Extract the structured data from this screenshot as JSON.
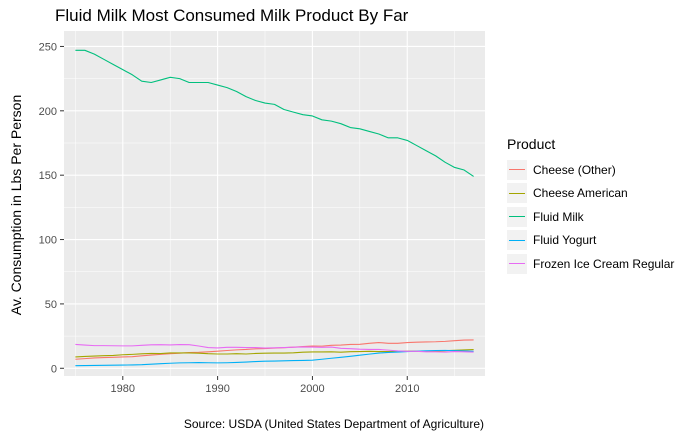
{
  "chart_data": {
    "type": "line",
    "title": "Fluid Milk Most Consumed Milk Product By Far",
    "ylabel": "Av. Consumption in Lbs Per Person",
    "xlabel": "",
    "caption": "Source: USDA (United States Department of Agriculture)",
    "xlim": [
      1973.8,
      2018.2
    ],
    "ylim": [
      -6,
      262
    ],
    "x_ticks": [
      1980,
      1990,
      2000,
      2010
    ],
    "y_ticks": [
      0,
      50,
      100,
      150,
      200,
      250
    ],
    "grid": true,
    "legend": {
      "title": "Product",
      "position": "right"
    },
    "series": [
      {
        "name": "Cheese (Other)",
        "color": "#F8766D",
        "x": [
          1975,
          1976,
          1977,
          1978,
          1979,
          1980,
          1981,
          1982,
          1983,
          1984,
          1985,
          1986,
          1987,
          1988,
          1989,
          1990,
          1991,
          1992,
          1993,
          1994,
          1995,
          1996,
          1997,
          1998,
          1999,
          2000,
          2001,
          2002,
          2003,
          2004,
          2005,
          2006,
          2007,
          2008,
          2009,
          2010,
          2011,
          2012,
          2013,
          2014,
          2015,
          2016,
          2017
        ],
        "y": [
          7.0,
          7.5,
          8.0,
          8.3,
          8.5,
          8.8,
          9.0,
          9.7,
          10.3,
          10.8,
          11.3,
          11.7,
          12.2,
          12.4,
          12.8,
          13.3,
          13.8,
          14.3,
          14.6,
          15.1,
          15.3,
          15.7,
          16.0,
          16.4,
          16.9,
          17.3,
          17.2,
          17.8,
          18.0,
          18.5,
          18.6,
          19.4,
          20.0,
          19.4,
          19.4,
          20.0,
          20.3,
          20.5,
          20.6,
          20.9,
          21.4,
          21.9,
          22.0
        ]
      },
      {
        "name": "Cheese American",
        "color": "#A3A500",
        "x": [
          1975,
          1976,
          1977,
          1978,
          1979,
          1980,
          1981,
          1982,
          1983,
          1984,
          1985,
          1986,
          1987,
          1988,
          1989,
          1990,
          1991,
          1992,
          1993,
          1994,
          1995,
          1996,
          1997,
          1998,
          1999,
          2000,
          2001,
          2002,
          2003,
          2004,
          2005,
          2006,
          2007,
          2008,
          2009,
          2010,
          2011,
          2012,
          2013,
          2014,
          2015,
          2016,
          2017
        ],
        "y": [
          8.8,
          9.2,
          9.5,
          9.8,
          10.0,
          10.5,
          10.8,
          11.2,
          11.5,
          11.4,
          11.9,
          11.9,
          11.9,
          11.7,
          11.3,
          11.1,
          11.1,
          11.3,
          11.1,
          11.5,
          11.7,
          11.8,
          11.8,
          12.0,
          12.5,
          12.7,
          12.7,
          12.8,
          12.5,
          12.9,
          13.0,
          13.2,
          13.0,
          13.0,
          13.2,
          13.3,
          13.3,
          13.3,
          13.4,
          13.7,
          14.0,
          14.3,
          14.5
        ]
      },
      {
        "name": "Fluid Milk",
        "color": "#00BF7D",
        "x": [
          1975,
          1976,
          1977,
          1978,
          1979,
          1980,
          1981,
          1982,
          1983,
          1984,
          1985,
          1986,
          1987,
          1988,
          1989,
          1990,
          1991,
          1992,
          1993,
          1994,
          1995,
          1996,
          1997,
          1998,
          1999,
          2000,
          2001,
          2002,
          2003,
          2004,
          2005,
          2006,
          2007,
          2008,
          2009,
          2010,
          2011,
          2012,
          2013,
          2014,
          2015,
          2016,
          2017
        ],
        "y": [
          247,
          247,
          244,
          240,
          236,
          232,
          228,
          223,
          222,
          224,
          226,
          225,
          222,
          222,
          222,
          220,
          218,
          215,
          211,
          208,
          206,
          205,
          201,
          199,
          197,
          196,
          193,
          192,
          190,
          187,
          186,
          184,
          182,
          179,
          179,
          177,
          173,
          169,
          165,
          160,
          156,
          154,
          149
        ]
      },
      {
        "name": "Fluid Yogurt",
        "color": "#00B0F6",
        "x": [
          1975,
          1976,
          1977,
          1978,
          1979,
          1980,
          1981,
          1982,
          1983,
          1984,
          1985,
          1986,
          1987,
          1988,
          1989,
          1990,
          1991,
          1992,
          1993,
          1994,
          1995,
          1996,
          1997,
          1998,
          1999,
          2000,
          2001,
          2002,
          2003,
          2004,
          2005,
          2006,
          2007,
          2008,
          2009,
          2010,
          2011,
          2012,
          2013,
          2014,
          2015,
          2016,
          2017
        ],
        "y": [
          2.0,
          2.1,
          2.2,
          2.3,
          2.4,
          2.5,
          2.6,
          2.8,
          3.2,
          3.6,
          3.9,
          4.2,
          4.3,
          4.4,
          4.3,
          4.2,
          4.3,
          4.5,
          4.8,
          5.2,
          5.5,
          5.6,
          5.8,
          6.0,
          6.1,
          6.3,
          7.0,
          7.8,
          8.5,
          9.3,
          10.2,
          11.0,
          11.8,
          12.3,
          12.6,
          13.0,
          13.3,
          13.6,
          13.8,
          13.9,
          13.7,
          13.5,
          13.2
        ]
      },
      {
        "name": "Frozen Ice Cream Regular",
        "color": "#E76BF3",
        "x": [
          1975,
          1976,
          1977,
          1978,
          1979,
          1980,
          1981,
          1982,
          1983,
          1984,
          1985,
          1986,
          1987,
          1988,
          1989,
          1990,
          1991,
          1992,
          1993,
          1994,
          1995,
          1996,
          1997,
          1998,
          1999,
          2000,
          2001,
          2002,
          2003,
          2004,
          2005,
          2006,
          2007,
          2008,
          2009,
          2010,
          2011,
          2012,
          2013,
          2014,
          2015,
          2016,
          2017
        ],
        "y": [
          18.5,
          18.0,
          17.6,
          17.6,
          17.5,
          17.4,
          17.4,
          17.8,
          18.2,
          18.3,
          18.1,
          18.4,
          18.3,
          17.3,
          16.1,
          15.8,
          16.3,
          16.3,
          16.1,
          16.1,
          15.7,
          15.9,
          16.1,
          16.4,
          16.6,
          16.5,
          16.3,
          16.5,
          15.5,
          15.2,
          14.8,
          14.6,
          14.6,
          14.1,
          13.5,
          13.2,
          13.2,
          12.8,
          12.8,
          12.6,
          13.0,
          12.8,
          12.6
        ]
      }
    ]
  }
}
